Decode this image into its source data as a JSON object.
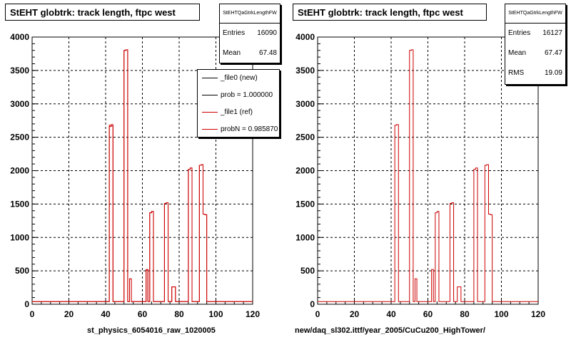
{
  "chart_data": [
    {
      "type": "histogram",
      "title": "StEHT globtrk: track length, ftpc west",
      "xlabel": "st_physics_6054016_raw_1020005",
      "ylabel": "",
      "xlim": [
        0,
        120
      ],
      "ylim": [
        0,
        4000
      ],
      "xticks": [
        0,
        20,
        40,
        60,
        80,
        100,
        120
      ],
      "yticks": [
        0,
        500,
        1000,
        1500,
        2000,
        2500,
        3000,
        3500,
        4000
      ],
      "grid": true,
      "stats": {
        "name": "StEHTQaGtrkLengthFW",
        "rows": [
          {
            "label": "Entries",
            "value": "16090"
          },
          {
            "label": "Mean",
            "value": "67.48"
          }
        ]
      },
      "legend": {
        "placement": "right",
        "entries": [
          {
            "label": "_file0 (new)",
            "color": "#000000"
          },
          {
            "label": "prob = 1.000000",
            "color": "#000000"
          },
          {
            "label": "_file1 (ref)",
            "color": "#cc0000"
          },
          {
            "label": "probN = 0.985870",
            "color": "#cc0000"
          }
        ]
      },
      "series": [
        {
          "name": "_file0 (new)",
          "color": "#cc0000",
          "x": [
            0,
            41,
            42,
            43,
            44,
            45,
            49,
            50,
            51,
            52,
            53,
            54,
            55,
            56,
            61,
            62,
            63,
            64,
            65,
            66,
            67,
            68,
            71,
            72,
            73,
            74,
            75,
            76,
            77,
            78,
            84,
            85,
            86,
            87,
            90,
            91,
            92,
            93,
            94,
            95,
            96,
            97,
            98
          ],
          "y": [
            40,
            40,
            2680,
            2690,
            40,
            40,
            40,
            3800,
            3810,
            40,
            380,
            40,
            40,
            40,
            40,
            520,
            40,
            1370,
            1390,
            40,
            40,
            40,
            40,
            1510,
            1520,
            40,
            40,
            260,
            260,
            40,
            40,
            2020,
            2040,
            40,
            40,
            2080,
            2090,
            1350,
            1340,
            40,
            40,
            40,
            40
          ]
        },
        {
          "name": "_file1 (ref)",
          "color": "#cc0000",
          "x": [
            0,
            41,
            42,
            43,
            44,
            45,
            49,
            50,
            51,
            52,
            53,
            54,
            55,
            56,
            61,
            62,
            63,
            64,
            65,
            66,
            67,
            68,
            71,
            72,
            73,
            74,
            75,
            76,
            77,
            78,
            84,
            85,
            86,
            87,
            90,
            91,
            92,
            93,
            94,
            95,
            96,
            97,
            98
          ],
          "y": [
            40,
            40,
            2660,
            2670,
            40,
            40,
            40,
            3800,
            3810,
            40,
            380,
            40,
            40,
            40,
            40,
            510,
            40,
            1370,
            1390,
            40,
            40,
            40,
            40,
            1510,
            1520,
            40,
            40,
            260,
            260,
            40,
            40,
            2020,
            2040,
            40,
            40,
            2080,
            2090,
            1350,
            1340,
            40,
            40,
            40,
            40
          ]
        }
      ]
    },
    {
      "type": "histogram",
      "title": "StEHT globtrk: track length, ftpc west",
      "xlabel": "new/daq_sl302.ittf/year_2005/CuCu200_HighTower/",
      "ylabel": "",
      "xlim": [
        0,
        120
      ],
      "ylim": [
        0,
        4000
      ],
      "xticks": [
        0,
        20,
        40,
        60,
        80,
        100,
        120
      ],
      "yticks": [
        0,
        500,
        1000,
        1500,
        2000,
        2500,
        3000,
        3500,
        4000
      ],
      "grid": true,
      "stats": {
        "name": "StEHTQaGtrkLengthFW",
        "rows": [
          {
            "label": "Entries",
            "value": "16127"
          },
          {
            "label": "Mean",
            "value": "67.47"
          },
          {
            "label": "RMS",
            "value": "19.09"
          }
        ]
      },
      "series": [
        {
          "name": "",
          "color": "#cc0000",
          "x": [
            0,
            41,
            42,
            43,
            44,
            45,
            49,
            50,
            51,
            52,
            53,
            54,
            55,
            56,
            61,
            62,
            63,
            64,
            65,
            66,
            67,
            68,
            71,
            72,
            73,
            74,
            75,
            76,
            77,
            78,
            84,
            85,
            86,
            87,
            90,
            91,
            92,
            93,
            94,
            95,
            96,
            97,
            98
          ],
          "y": [
            40,
            40,
            2680,
            2690,
            40,
            40,
            40,
            3800,
            3810,
            40,
            380,
            40,
            40,
            40,
            40,
            520,
            40,
            1370,
            1390,
            40,
            40,
            40,
            40,
            1510,
            1520,
            40,
            40,
            260,
            260,
            40,
            40,
            2020,
            2040,
            40,
            40,
            2080,
            2090,
            1350,
            1340,
            40,
            40,
            40,
            40
          ]
        }
      ]
    }
  ]
}
